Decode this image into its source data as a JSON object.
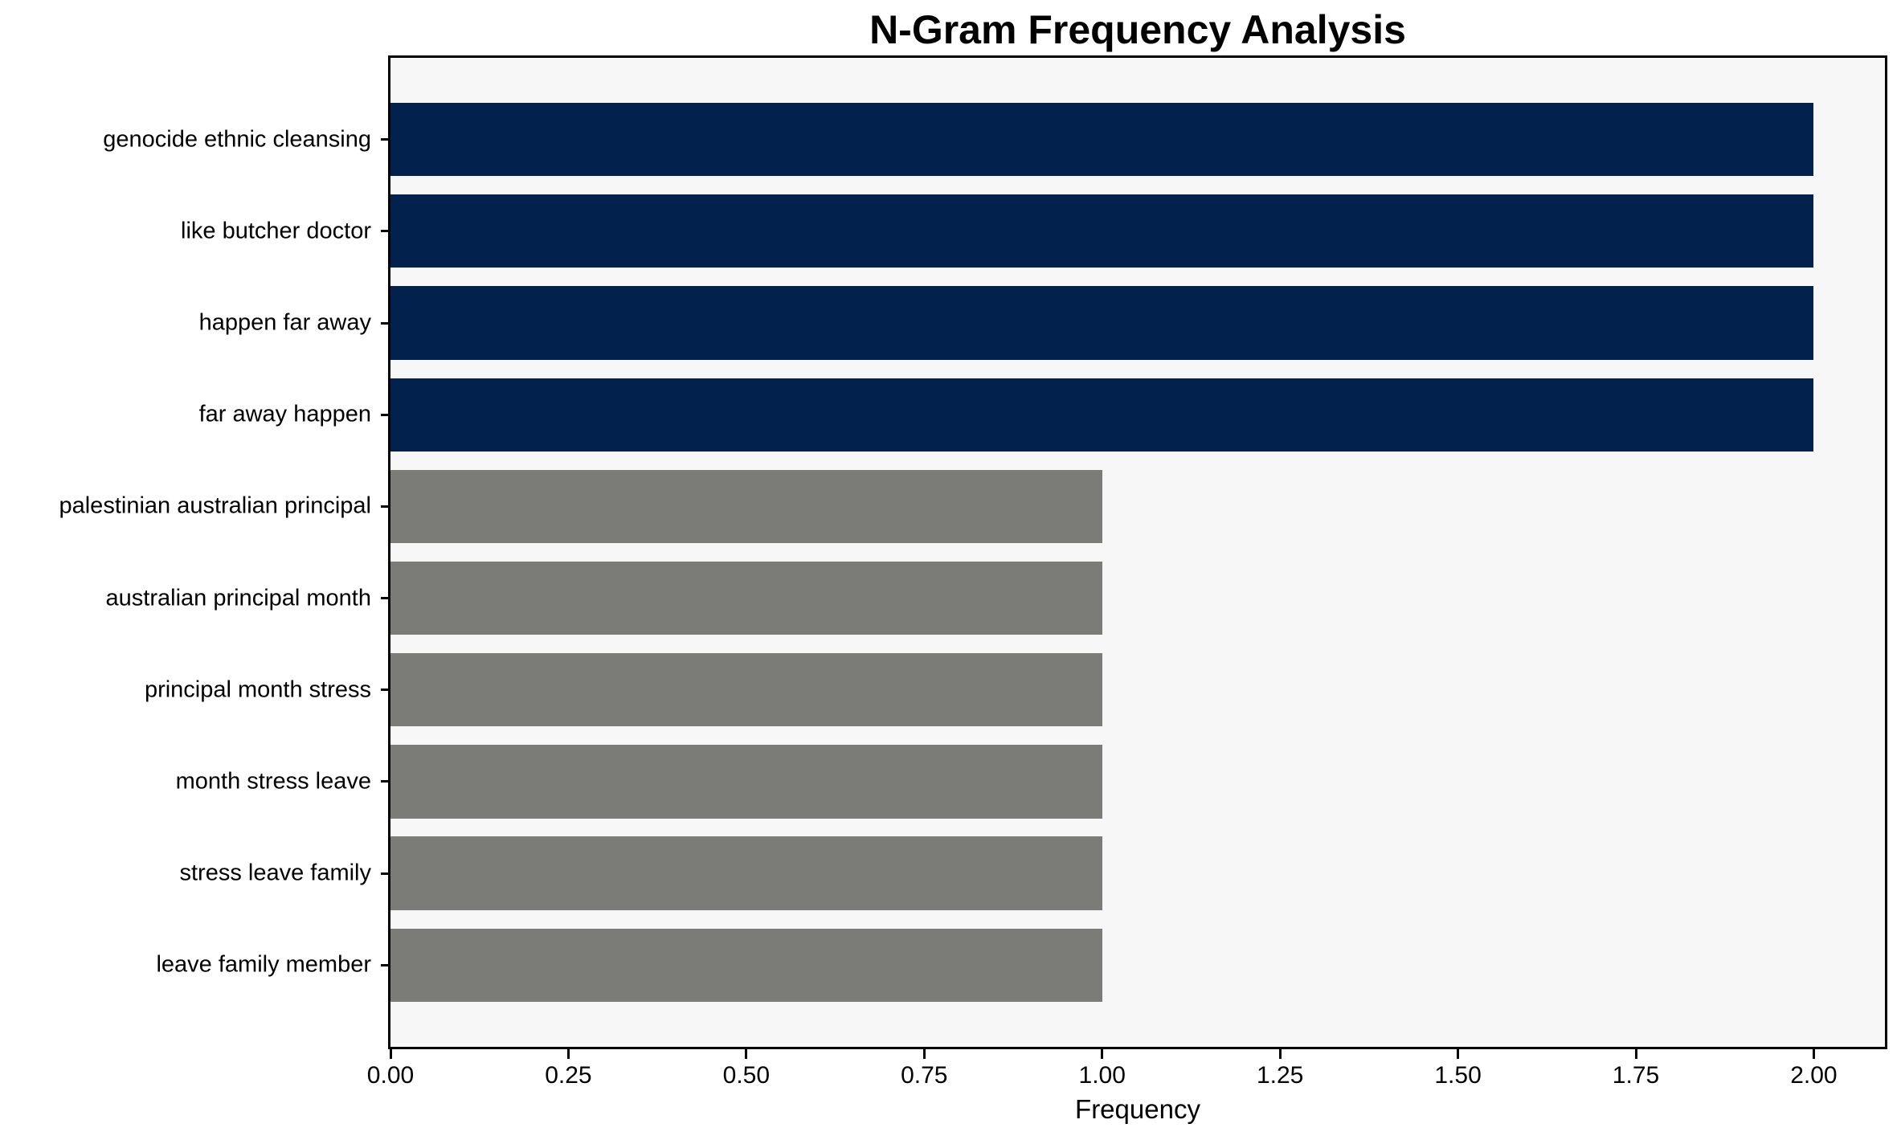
{
  "chart_data": {
    "type": "bar",
    "orientation": "horizontal",
    "title": "N-Gram Frequency Analysis",
    "xlabel": "Frequency",
    "ylabel": "",
    "categories": [
      "genocide ethnic cleansing",
      "like butcher doctor",
      "happen far away",
      "far away happen",
      "palestinian australian principal",
      "australian principal month",
      "principal month stress",
      "month stress leave",
      "stress leave family",
      "leave family member"
    ],
    "values": [
      2,
      2,
      2,
      2,
      1,
      1,
      1,
      1,
      1,
      1
    ],
    "bar_colors": [
      "#02224d",
      "#02224d",
      "#02224d",
      "#02224d",
      "#7b7b78",
      "#7b7b78",
      "#7b7b78",
      "#7b7b78",
      "#7b7b78",
      "#7b7b78"
    ],
    "colors": {
      "highlight_navy": "#02224d",
      "default_gray": "#7b7b78",
      "plot_background": "#f7f7f7",
      "figure_background": "#ffffff",
      "text": "#000000"
    },
    "xlim": [
      0,
      2.1
    ],
    "ylim": [
      -0.89,
      9.89
    ],
    "bar_thickness": 0.8,
    "xtick_values": [
      0,
      0.25,
      0.5,
      0.75,
      1.0,
      1.25,
      1.5,
      1.75,
      2.0
    ],
    "xtick_labels": [
      "0.00",
      "0.25",
      "0.50",
      "0.75",
      "1.00",
      "1.25",
      "1.50",
      "1.75",
      "2.00"
    ],
    "grid": false,
    "legend_position": "none"
  }
}
